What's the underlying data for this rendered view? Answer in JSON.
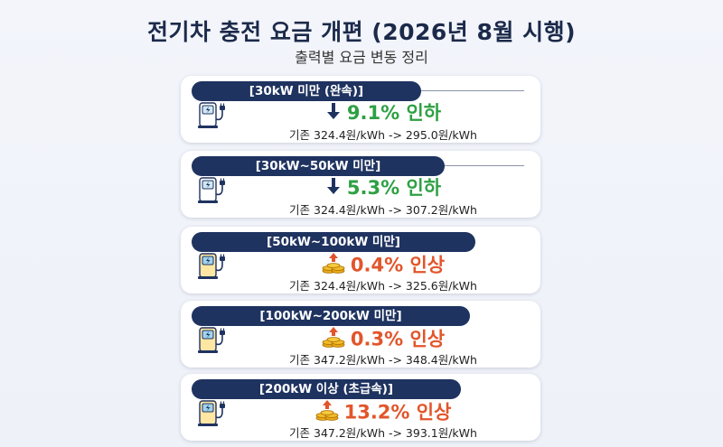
{
  "header": {
    "title": "전기차 충전 요금 개편 (2026년 8월 시행)",
    "subtitle": "출력별 요금 변동 정리"
  },
  "colors": {
    "navy": "#1f3360",
    "decrease": "#2ea043",
    "increase": "#e2552b"
  },
  "cards": [
    {
      "tier": "[30kW 미만 (완속)]",
      "direction": "down",
      "change": "9.1% 인하",
      "detail": "기존 324.4원/kWh -> 295.0원/kWh",
      "icon": "ev-charger-icon"
    },
    {
      "tier": "[30kW~50kW 미만]",
      "direction": "down",
      "change": "5.3% 인하",
      "detail": "기존 324.4원/kWh -> 307.2원/kWh",
      "icon": "ev-charger-icon"
    },
    {
      "tier": "[50kW~100kW 미만]",
      "direction": "up",
      "change": "0.4% 인상",
      "detail": "기존 324.4원/kWh -> 325.6원/kWh",
      "icon": "ev-charger-icon"
    },
    {
      "tier": "[100kW~200kW 미만]",
      "direction": "up",
      "change": "0.3% 인상",
      "detail": "기존 347.2원/kWh -> 348.4원/kWh",
      "icon": "ev-charger-icon"
    },
    {
      "tier": "[200kW 이상 (초급속)]",
      "direction": "up",
      "change": "13.2% 인상",
      "detail": "기존 347.2원/kWh -> 393.1원/kWh",
      "icon": "ev-charger-icon"
    }
  ]
}
